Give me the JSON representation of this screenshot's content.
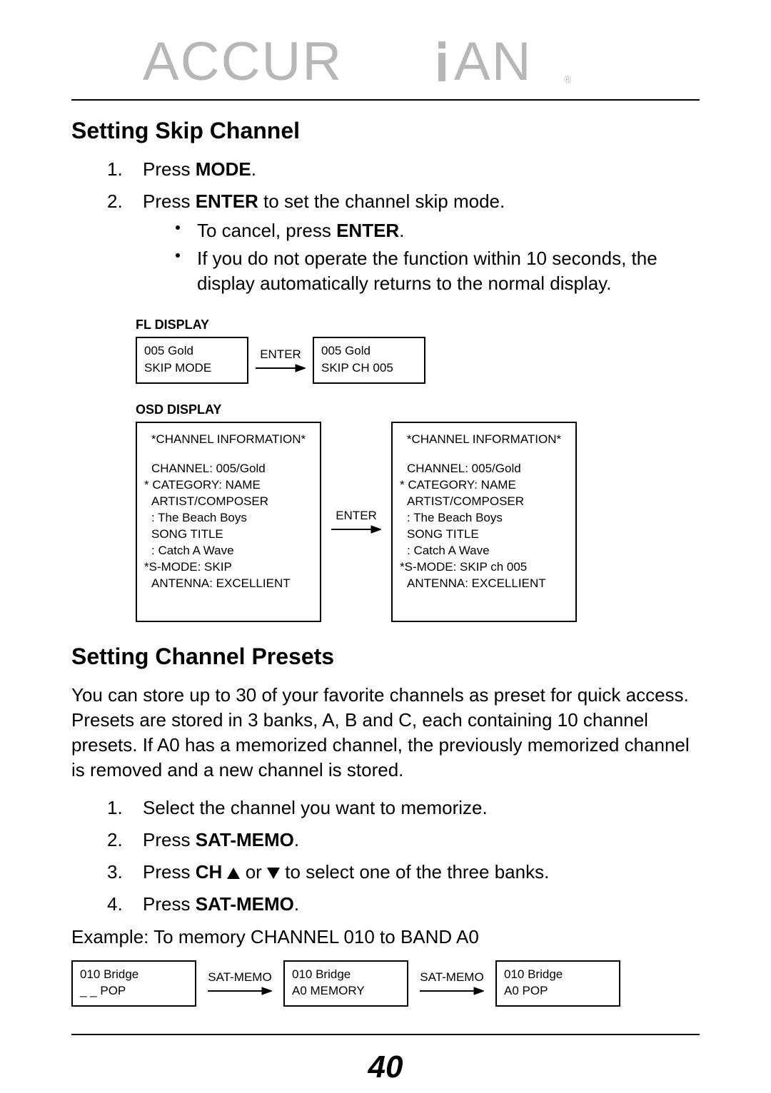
{
  "brand": {
    "name": "ACCURIAN",
    "text_color": "#b7b7b7",
    "accent_color": "#b7b7b7"
  },
  "sections": {
    "skip": {
      "heading": "Setting Skip Channel",
      "steps": [
        {
          "num": "1.",
          "pre": "Press ",
          "bold": "MODE",
          "post": "."
        },
        {
          "num": "2.",
          "pre": "Press ",
          "bold": "ENTER",
          "post": " to set the channel skip mode."
        }
      ],
      "bullets": [
        {
          "pre": "To cancel, press ",
          "bold": "ENTER",
          "post": "."
        },
        {
          "text": "If you do not operate the function within 10 seconds, the display automatically returns to the normal display."
        }
      ],
      "fl": {
        "label": "FL DISPLAY",
        "box1": {
          "line1": "005 Gold",
          "line2": "SKIP MODE"
        },
        "arrow": "ENTER",
        "box2": {
          "line1": "005 Gold",
          "line2": "SKIP CH 005"
        }
      },
      "osd": {
        "label": "OSD DISPLAY",
        "arrow": "ENTER",
        "box1": {
          "title": "*CHANNEL INFORMATION*",
          "lines": [
            {
              "t": "CHANNEL: 005/Gold",
              "star": false
            },
            {
              "t": "* CATEGORY: NAME",
              "star": true
            },
            {
              "t": "ARTIST/COMPOSER",
              "star": false
            },
            {
              "t": ": The Beach Boys",
              "star": false
            },
            {
              "t": "SONG TITLE",
              "star": false
            },
            {
              "t": ": Catch A Wave",
              "star": false
            },
            {
              "t": "*S-MODE: SKIP",
              "star": true
            },
            {
              "t": "ANTENNA: EXCELLIENT",
              "star": false
            }
          ]
        },
        "box2": {
          "title": "*CHANNEL INFORMATION*",
          "lines": [
            {
              "t": "CHANNEL: 005/Gold",
              "star": false
            },
            {
              "t": "* CATEGORY: NAME",
              "star": true
            },
            {
              "t": "ARTIST/COMPOSER",
              "star": false
            },
            {
              "t": ": The Beach Boys",
              "star": false
            },
            {
              "t": "SONG TITLE",
              "star": false
            },
            {
              "t": ": Catch A Wave",
              "star": false
            },
            {
              "t": "*S-MODE: SKIP ch 005",
              "star": true
            },
            {
              "t": "ANTENNA: EXCELLIENT",
              "star": false
            }
          ]
        }
      }
    },
    "presets": {
      "heading": "Setting Channel Presets",
      "para": "You can store up to 30 of your favorite channels as preset for quick access. Presets are stored in 3 banks, A, B and C, each containing 10 channel presets. If A0 has a memorized channel, the previously memorized channel is removed and a new channel is stored.",
      "steps": [
        {
          "num": "1.",
          "text": "Select the channel you want to memorize."
        },
        {
          "num": "2.",
          "pre": "Press ",
          "bold": "SAT-MEMO",
          "post": "."
        },
        {
          "num": "3.",
          "pre": "Press ",
          "bold": "CH",
          "tri": true,
          "post": " to select one of the three banks."
        },
        {
          "num": "4.",
          "pre": "Press ",
          "bold": "SAT-MEMO",
          "post": "."
        }
      ],
      "example": "Example: To memory CHANNEL 010 to BAND A0",
      "memo": {
        "arrow": "SAT-MEMO",
        "box1": {
          "line1": "010 Bridge",
          "line2": "_ _   POP"
        },
        "box2": {
          "line1": "010 Bridge",
          "line2": "A0    MEMORY"
        },
        "box3": {
          "line1": "010 Bridge",
          "line2": "A0  POP"
        }
      }
    }
  },
  "or_text": " or ",
  "page": "40"
}
